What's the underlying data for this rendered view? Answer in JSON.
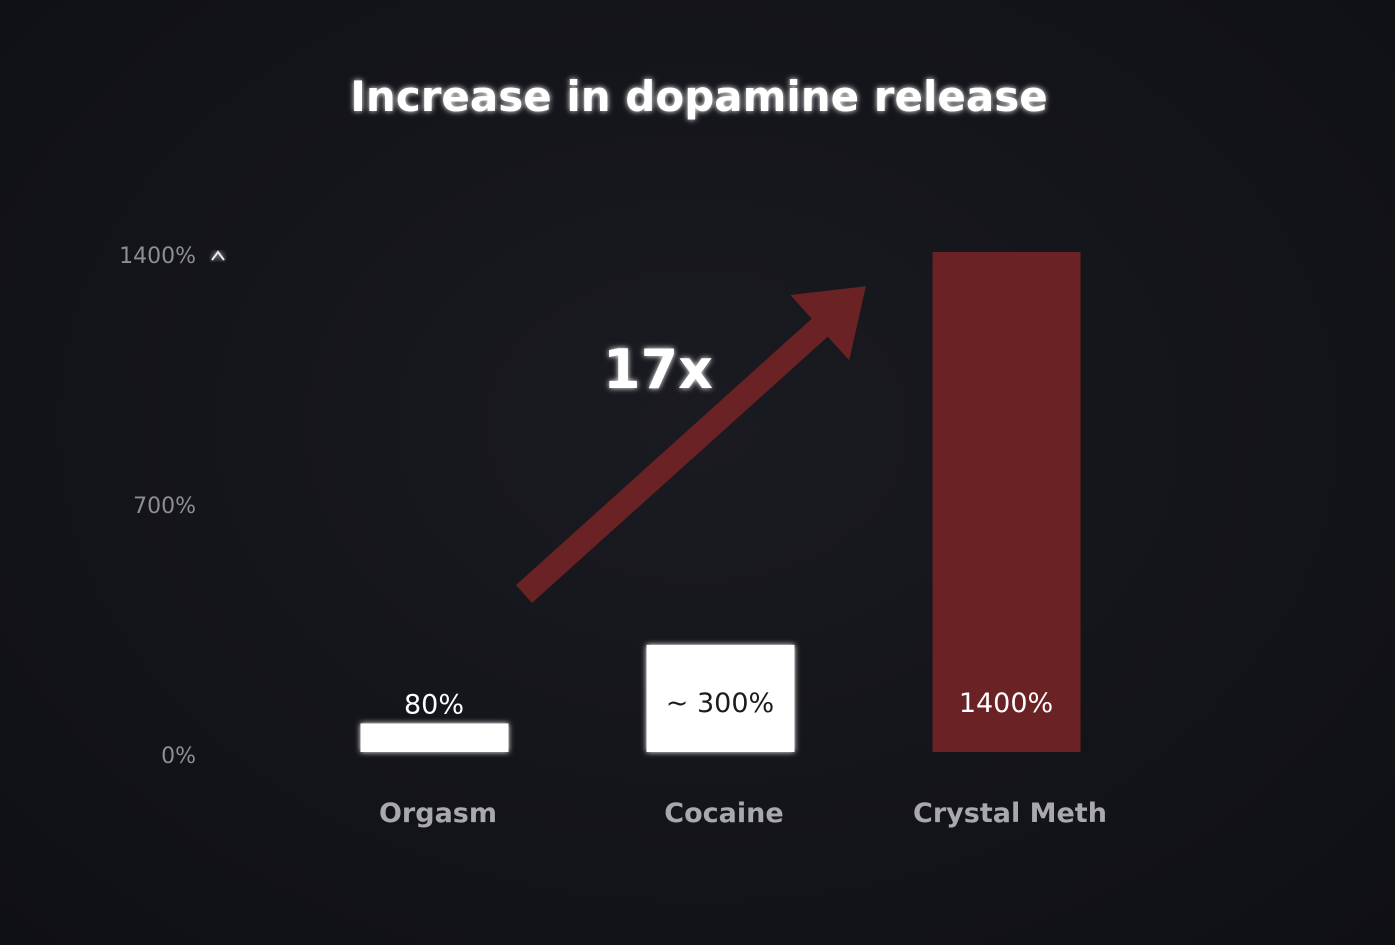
{
  "chart_data": {
    "type": "bar",
    "title": "Increase in dopamine release",
    "categories": [
      "Orgasm",
      "Cocaine",
      "Crystal Meth"
    ],
    "values": [
      80,
      300,
      1400
    ],
    "value_labels": [
      "80%",
      "~ 300%",
      "1400%"
    ],
    "y_ticks": [
      0,
      700,
      1400
    ],
    "y_tick_labels": [
      "0%",
      "700%",
      "1400%"
    ],
    "ylim": [
      0,
      1400
    ],
    "grid": false,
    "annotation": "17x",
    "colors": {
      "background": "#131419",
      "bar_default": "#ffffff",
      "bar_highlight": "#6b2224",
      "arrow": "#6b2224",
      "axis": "#e9e9ee",
      "tick_text": "#8d8d93",
      "category_text": "#a8a8ae",
      "title_text": "#ffffff",
      "label_on_light": "#1c1c20",
      "label_on_dark": "#ffffff"
    },
    "highlight_index": 2
  }
}
